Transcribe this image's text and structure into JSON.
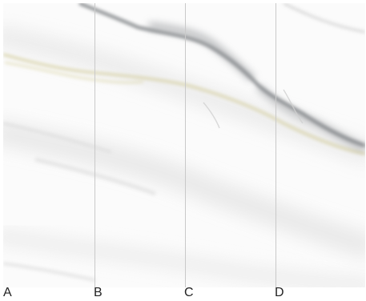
{
  "panels": [
    {
      "id": "A",
      "label": "A"
    },
    {
      "id": "B",
      "label": "B"
    },
    {
      "id": "C",
      "label": "C"
    },
    {
      "id": "D",
      "label": "D"
    }
  ],
  "colors": {
    "marble_base": "#fbfbfb",
    "vein_dark": "#6d7175",
    "vein_gold": "#d8d2a8",
    "seam": "#c9c9c9"
  }
}
